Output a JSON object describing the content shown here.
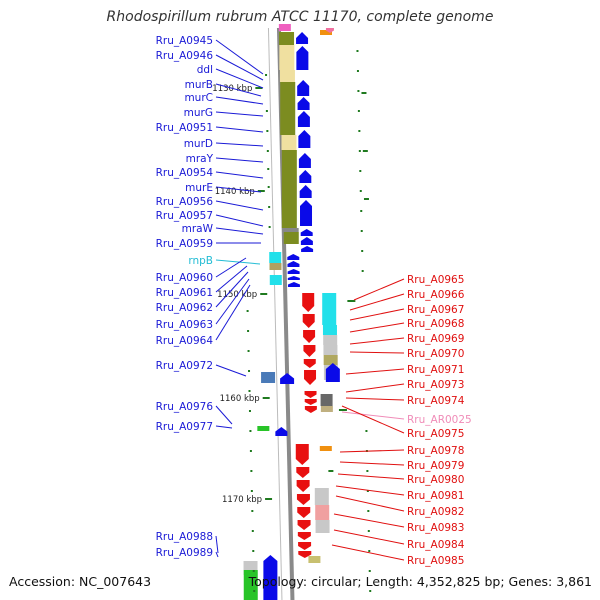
{
  "title": "Rhodospirillum rubrum ATCC 11170, complete genome",
  "footer": {
    "accession": "Accession: NC_007643",
    "topology": "Topology: circular; Length: 4,352,825 bp; Genes: 3,861"
  },
  "colors": {
    "left_label": "#1a1ad6",
    "right_label": "#e01010",
    "rna_label": "#22bcd4",
    "pseudo_label": "#f08cb8",
    "plus_arrow": "#0a0ae8",
    "minus_arrow": "#e81010",
    "cog_olive": "#7c8c20",
    "cog_cream": "#f0e0a0",
    "cog_cyan": "#22e0ea",
    "cog_grey": "#c8c8c8",
    "cog_green": "#28c428",
    "cog_steel": "#4a7ab8",
    "tick": "#1f7a1f",
    "backbone": "#8a8a8a"
  },
  "ticks": [
    {
      "label": "1130 kbp"
    },
    {
      "label": "1140 kbp"
    },
    {
      "label": "1150 kbp"
    },
    {
      "label": "1160 kbp"
    },
    {
      "label": "1170 kbp"
    }
  ],
  "left_genes": [
    {
      "label": "Rru_A0945"
    },
    {
      "label": "Rru_A0946"
    },
    {
      "label": "ddl"
    },
    {
      "label": "murB"
    },
    {
      "label": "murC"
    },
    {
      "label": "murG"
    },
    {
      "label": "Rru_A0951"
    },
    {
      "label": "murD"
    },
    {
      "label": "mraY"
    },
    {
      "label": "Rru_A0954"
    },
    {
      "label": "murE"
    },
    {
      "label": "Rru_A0956"
    },
    {
      "label": "Rru_A0957"
    },
    {
      "label": "mraW"
    },
    {
      "label": "Rru_A0959"
    },
    {
      "label": "rnpB"
    },
    {
      "label": "Rru_A0960"
    },
    {
      "label": "Rru_A0961"
    },
    {
      "label": "Rru_A0962"
    },
    {
      "label": "Rru_A0963"
    },
    {
      "label": "Rru_A0964"
    },
    {
      "label": "Rru_A0972"
    },
    {
      "label": "Rru_A0976"
    },
    {
      "label": "Rru_A0977"
    },
    {
      "label": "Rru_A0988"
    },
    {
      "label": "Rru_A0989"
    }
  ],
  "right_genes": [
    {
      "label": "Rru_A0965"
    },
    {
      "label": "Rru_A0966"
    },
    {
      "label": "Rru_A0967"
    },
    {
      "label": "Rru_A0968"
    },
    {
      "label": "Rru_A0969"
    },
    {
      "label": "Rru_A0970"
    },
    {
      "label": "Rru_A0971"
    },
    {
      "label": "Rru_A0973"
    },
    {
      "label": "Rru_A0974"
    },
    {
      "label": "Rru_AR0025"
    },
    {
      "label": "Rru_A0975"
    },
    {
      "label": "Rru_A0978"
    },
    {
      "label": "Rru_A0979"
    },
    {
      "label": "Rru_A0980"
    },
    {
      "label": "Rru_A0981"
    },
    {
      "label": "Rru_A0982"
    },
    {
      "label": "Rru_A0983"
    },
    {
      "label": "Rru_A0984"
    },
    {
      "label": "Rru_A0985"
    }
  ]
}
